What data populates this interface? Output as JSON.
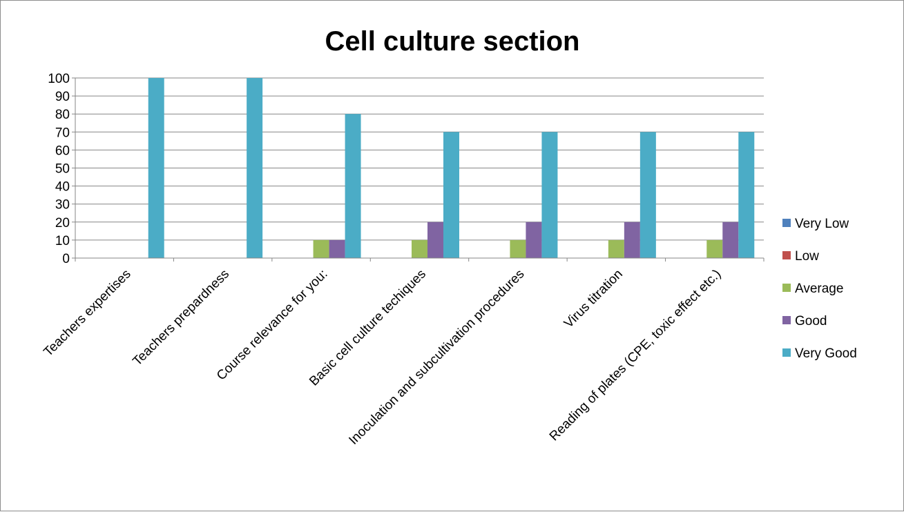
{
  "chart_data": {
    "type": "bar",
    "title": "Cell culture section",
    "xlabel": "",
    "ylabel": "",
    "ylim": [
      0,
      100
    ],
    "yticks": [
      0,
      10,
      20,
      30,
      40,
      50,
      60,
      70,
      80,
      90,
      100
    ],
    "grid": true,
    "legend_position": "right",
    "categories": [
      "Teachers expertises",
      "Teachers prepardness",
      "Course relevance for you:",
      "Basic cell culture techiques",
      "Inoculation and subcultivation procedures",
      "Virus titration",
      "Reading of plates (CPE, toxic effect etc.)"
    ],
    "series": [
      {
        "name": "Very Low",
        "color": "#4f81bd",
        "values": [
          0,
          0,
          0,
          0,
          0,
          0,
          0
        ]
      },
      {
        "name": "Low",
        "color": "#c0504d",
        "values": [
          0,
          0,
          0,
          0,
          0,
          0,
          0
        ]
      },
      {
        "name": "Average",
        "color": "#9bbb59",
        "values": [
          0,
          0,
          10,
          10,
          10,
          10,
          10
        ]
      },
      {
        "name": "Good",
        "color": "#8064a2",
        "values": [
          0,
          0,
          10,
          20,
          20,
          20,
          20
        ]
      },
      {
        "name": "Very Good",
        "color": "#4bacc6",
        "values": [
          100,
          100,
          80,
          70,
          70,
          70,
          70
        ]
      }
    ]
  }
}
